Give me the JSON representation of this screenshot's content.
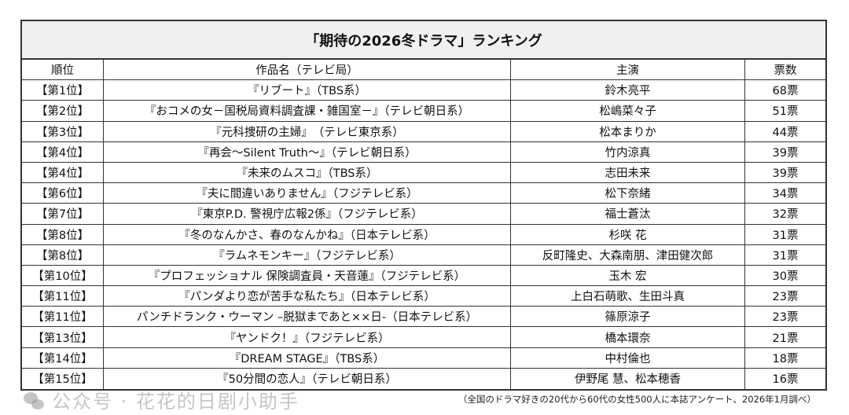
{
  "title": "「期待の2026冬ドラマ」ランキング",
  "headers": [
    "順位",
    "作品名（テレビ局）",
    "主演",
    "票数"
  ],
  "rows": [
    [
      "【第1位】",
      "『リブート』（TBS系）",
      "鈴木亮平",
      "68票"
    ],
    [
      "【第2位】",
      "『おコメの女－国税局資料調査課・雑国室－』（テレビ朝日系）",
      "松嶋菜々子",
      "51票"
    ],
    [
      "【第3位】",
      "『元科捜研の主婦』　（テレビ東京系）",
      "松本まりか",
      "44票"
    ],
    [
      "【第4位】",
      "『再会～Silent Truth～』（テレビ朝日系）",
      "竹内涼真",
      "39票"
    ],
    [
      "【第4位】",
      "『未来のムスコ』（TBS系）",
      "志田未来",
      "39票"
    ],
    [
      "【第6位】",
      "『夫に間違いありません』（フジテレビ系）",
      "松下奈緒",
      "34票"
    ],
    [
      "【第7位】",
      "『東京P.D. 警視庁広報2係』（フジテレビ系）",
      "福士蒼汰",
      "32票"
    ],
    [
      "【第8位】",
      "『冬のなんかさ、春のなんかね』（日本テレビ系）",
      "杉咲 花",
      "31票"
    ],
    [
      "【第8位】",
      "『ラムネモンキー』（フジテレビ系）",
      "反町隆史、大森南朋、津田健次郎",
      "31票"
    ],
    [
      "【第10位】",
      "『プロフェッショナル 保険調査員・天音蓮』（フジテレビ系）",
      "玉木 宏",
      "30票"
    ],
    [
      "【第11位】",
      "『パンダより恋が苦手な私たち』（日本テレビ系）",
      "上白石萌歌、生田斗真",
      "23票"
    ],
    [
      "【第11位】",
      "パンチドランク・ウーマン –脱獄まであと××日-（日本テレビ系）",
      "篠原涼子",
      "23票"
    ],
    [
      "【第13位】",
      "『ヤンドク！』（フジテレビ系）",
      "橋本環奈",
      "21票"
    ],
    [
      "【第14位】",
      "『DREAM STAGE』（TBS系）",
      "中村倫也",
      "18票"
    ],
    [
      "【第15位】",
      "『50分間の恋人』（テレビ朝日系）",
      "伊野尾 慧、松本穂香",
      "16票"
    ]
  ],
  "footnote": "（全国のドラマ好きの20代から60代の女性500人に本誌アンケート、2026年1月調べ）",
  "watermark": "公众号 · 花花的日剧小助手"
}
